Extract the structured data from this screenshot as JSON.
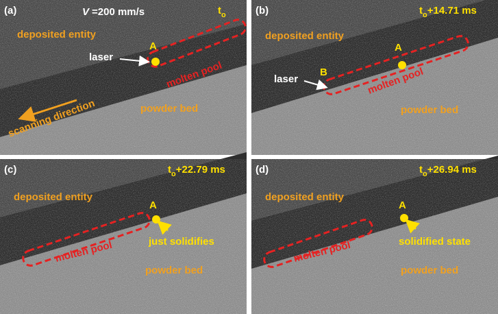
{
  "panels": [
    {
      "label": "(a)",
      "speed": {
        "symbol": "V",
        "text": "=200 mm/s"
      },
      "time": {
        "base": "t",
        "sub": "o"
      },
      "deposited": "deposited entity",
      "powder": "powder bed",
      "pool": "molten pool",
      "point_a": "A",
      "laser": "laser",
      "direction": "scanning direction"
    },
    {
      "label": "(b)",
      "time": {
        "base": "t",
        "sub": "o",
        "rest": "+14.71 ms"
      },
      "deposited": "deposited entity",
      "powder": "powder bed",
      "pool": "molten pool",
      "point_a": "A",
      "point_b": "B",
      "laser": "laser"
    },
    {
      "label": "(c)",
      "time": {
        "base": "t",
        "sub": "o",
        "rest": "+22.79 ms"
      },
      "deposited": "deposited entity",
      "powder": "powder bed",
      "pool": "molten pool",
      "point_a": "A",
      "state": "just solidifies"
    },
    {
      "label": "(d)",
      "time": {
        "base": "t",
        "sub": "o",
        "rest": "+26.94 ms"
      },
      "deposited": "deposited entity",
      "powder": "powder bed",
      "pool": "molten pool",
      "point_a": "A",
      "state": "solidified  state"
    }
  ]
}
